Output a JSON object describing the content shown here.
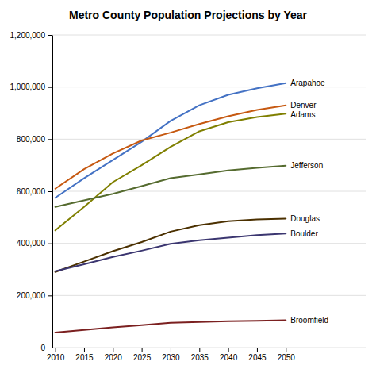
{
  "chart_data": {
    "type": "line",
    "title": "Metro County Population Projections by Year",
    "x": [
      2010,
      2015,
      2020,
      2025,
      2030,
      2035,
      2040,
      2045,
      2050
    ],
    "series": [
      {
        "name": "Arapahoe",
        "color": "#4472C4",
        "values": [
          575000,
          650000,
          720000,
          790000,
          870000,
          930000,
          970000,
          995000,
          1015000
        ]
      },
      {
        "name": "Denver",
        "color": "#C65911",
        "values": [
          610000,
          685000,
          745000,
          795000,
          825000,
          858000,
          888000,
          912000,
          930000
        ]
      },
      {
        "name": "Adams",
        "color": "#7F7F00",
        "values": [
          450000,
          540000,
          635000,
          700000,
          770000,
          830000,
          865000,
          885000,
          898000
        ]
      },
      {
        "name": "Jefferson",
        "color": "#556B2F",
        "values": [
          540000,
          565000,
          590000,
          620000,
          650000,
          665000,
          680000,
          690000,
          698000
        ]
      },
      {
        "name": "Douglas",
        "color": "#4B3000",
        "values": [
          290000,
          330000,
          370000,
          405000,
          445000,
          470000,
          485000,
          492000,
          495000
        ]
      },
      {
        "name": "Boulder",
        "color": "#3B3670",
        "values": [
          293000,
          320000,
          348000,
          372000,
          398000,
          412000,
          422000,
          432000,
          438000
        ]
      },
      {
        "name": "Broomfield",
        "color": "#7B2020",
        "values": [
          58000,
          68000,
          78000,
          86000,
          95000,
          98000,
          101000,
          103000,
          105000
        ]
      }
    ],
    "xlim": [
      2009.5,
      2064
    ],
    "xticks": [
      2010,
      2015,
      2020,
      2025,
      2030,
      2035,
      2040,
      2045,
      2050
    ],
    "ylim": [
      0,
      1200000
    ],
    "yticks": [
      0,
      {
        "value": 200000,
        "label": "200,000"
      },
      {
        "value": 400000,
        "label": "400,000"
      },
      {
        "value": 600000,
        "label": "600,000"
      },
      {
        "value": 800000,
        "label": "800,000"
      },
      {
        "value": 1000000,
        "label": "1,000,000"
      },
      {
        "value": 1200000,
        "label": "1,200,000"
      }
    ],
    "grid": true
  }
}
